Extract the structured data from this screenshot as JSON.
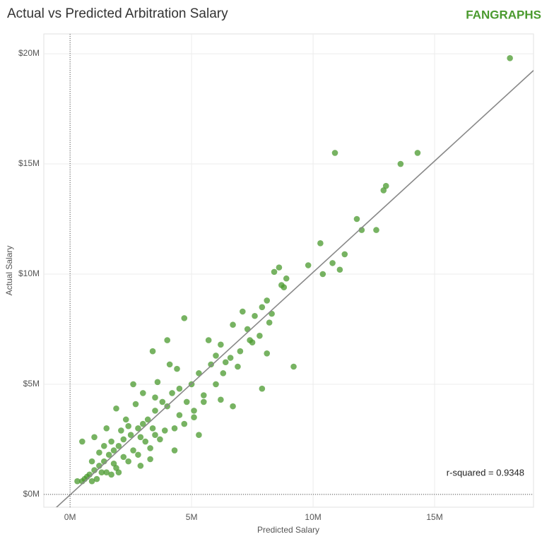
{
  "chart_data": {
    "type": "scatter",
    "title": "Actual vs Predicted Arbitration Salary",
    "logo": "FANGRAPHS",
    "x_label": "Predicted Salary",
    "y_label": "Actual Salary",
    "annotation": "r-squared = 0.9348",
    "color": "#4a9a2e",
    "grid": true,
    "xlim": [
      -1.08,
      19.07
    ],
    "ylim": [
      -0.58,
      20.9
    ],
    "xticks": [
      {
        "value": 0,
        "label": "0M"
      },
      {
        "value": 5,
        "label": "5M"
      },
      {
        "value": 10,
        "label": "10M"
      },
      {
        "value": 15,
        "label": "15M"
      }
    ],
    "yticks": [
      {
        "value": 0,
        "label": "$0M"
      },
      {
        "value": 5,
        "label": "$5M"
      },
      {
        "value": 10,
        "label": "$10M"
      },
      {
        "value": 15,
        "label": "$15M"
      },
      {
        "value": 20,
        "label": "$20M"
      }
    ],
    "trendline": {
      "slope": 1.01,
      "intercept": -0.02
    },
    "x": [
      18.1,
      10.9,
      14.3,
      13.6,
      13.0,
      12.9,
      11.8,
      12.0,
      12.6,
      10.3,
      11.3,
      10.8,
      11.1,
      9.8,
      10.4,
      8.6,
      8.4,
      8.7,
      8.9,
      8.8,
      8.1,
      7.9,
      7.1,
      7.6,
      8.3,
      6.7,
      7.3,
      7.8,
      8.1,
      9.2,
      7.9,
      6.7,
      4.7,
      3.4,
      4.0,
      4.1,
      2.6,
      4.4,
      5.7,
      6.2,
      6.0,
      5.3,
      5.8,
      6.4,
      5.0,
      4.5,
      4.2,
      3.8,
      3.5,
      3.2,
      3.0,
      2.8,
      2.5,
      2.2,
      2.0,
      1.8,
      1.6,
      1.4,
      1.2,
      1.0,
      0.8,
      0.6,
      0.5,
      0.3,
      0.9,
      1.1,
      1.5,
      1.9,
      2.4,
      2.8,
      3.3,
      3.7,
      4.3,
      4.3,
      5.3,
      5.1,
      5.5,
      5.5,
      6.0,
      6.3,
      6.6,
      7.0,
      7.4,
      0.5,
      1.0,
      1.5,
      1.9,
      2.3,
      2.7,
      3.0,
      3.5,
      4.0,
      3.9,
      3.5,
      3.1,
      2.6,
      2.2,
      1.8,
      1.3,
      0.7,
      1.7,
      2.1,
      2.4,
      4.5,
      4.8,
      3.3,
      2.9,
      1.2,
      0.9,
      3.6,
      1.7,
      2.0,
      4.7,
      5.1,
      6.2,
      6.9,
      7.5,
      8.2,
      2.9,
      3.4,
      1.4
    ],
    "values": [
      19.8,
      15.5,
      15.5,
      15.0,
      14.0,
      13.8,
      12.5,
      12.0,
      12.0,
      11.4,
      10.9,
      10.5,
      10.2,
      10.4,
      10.0,
      10.3,
      10.1,
      9.5,
      9.8,
      9.4,
      8.8,
      8.5,
      8.3,
      8.1,
      8.2,
      7.7,
      7.5,
      7.2,
      6.4,
      5.8,
      4.8,
      4.0,
      8.0,
      6.5,
      7.0,
      5.9,
      5.0,
      5.7,
      7.0,
      6.8,
      6.3,
      5.5,
      5.9,
      6.0,
      5.0,
      4.8,
      4.6,
      4.2,
      3.8,
      3.4,
      3.2,
      3.0,
      2.7,
      2.5,
      2.2,
      2.0,
      1.8,
      1.5,
      1.3,
      1.1,
      0.9,
      0.7,
      0.6,
      0.6,
      0.6,
      0.7,
      1.0,
      1.2,
      1.5,
      1.8,
      2.1,
      2.5,
      3.0,
      2.0,
      2.7,
      3.5,
      4.2,
      4.5,
      5.0,
      5.5,
      6.2,
      6.5,
      7.0,
      2.4,
      2.6,
      3.0,
      3.9,
      3.4,
      4.1,
      4.6,
      4.4,
      4.0,
      2.9,
      2.7,
      2.4,
      2.0,
      1.7,
      1.4,
      1.0,
      0.8,
      2.4,
      2.9,
      3.1,
      3.6,
      4.2,
      1.6,
      1.3,
      1.9,
      1.5,
      5.1,
      0.9,
      1.0,
      3.2,
      3.8,
      4.3,
      5.8,
      6.9,
      7.8,
      2.6,
      3.0,
      2.2
    ]
  }
}
